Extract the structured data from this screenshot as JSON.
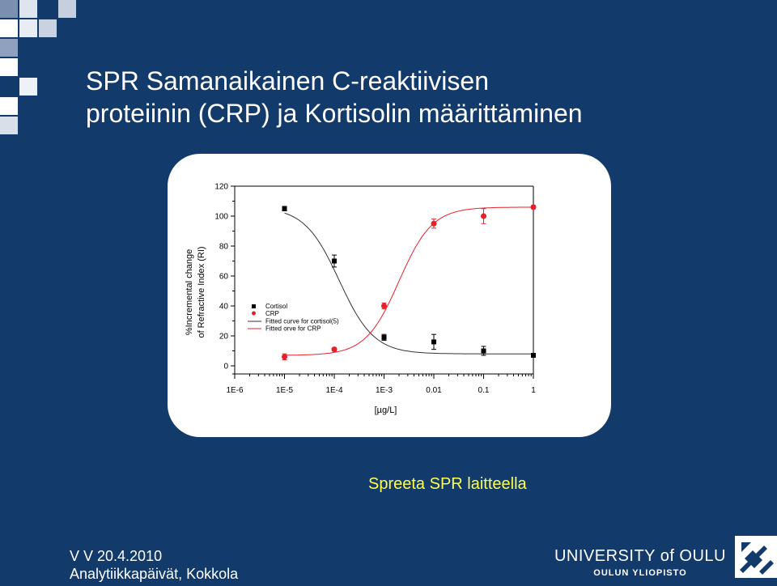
{
  "slide": {
    "title_line1": "SPR Samanaikainen C-reaktiivisen",
    "title_line2": "proteiinin (CRP) ja Kortisolin määrittäminen",
    "caption": "Spreeta SPR laitteella",
    "footer_line1": "V V 20.4.2010",
    "footer_line2": "Analytiikkapäivät, Kokkola",
    "university_name": "UNIVERSITY of OULU",
    "university_sub": "OULUN YLIOPISTO",
    "logo_icon": "university-logo-icon",
    "accent_color": "#ffff4d",
    "background_color": "#123a6b"
  },
  "chart_data": {
    "type": "scatter",
    "title": "",
    "xlabel": "[µg/L]",
    "ylabel_line1": "%Incremental change",
    "ylabel_line2": "of Refractive Index (RI)",
    "x_scale": "log",
    "xlim": [
      1e-06,
      1
    ],
    "ylim": [
      0,
      120
    ],
    "x_tick_labels": [
      "1E-6",
      "1E-5",
      "1E-4",
      "1E-3",
      "0.01",
      "0.1",
      "1"
    ],
    "x_tick_values": [
      1e-06,
      1e-05,
      0.0001,
      0.001,
      0.01,
      0.1,
      1
    ],
    "y_tick_labels": [
      "0",
      "20",
      "40",
      "60",
      "80",
      "100",
      "120"
    ],
    "y_tick_values": [
      0,
      20,
      40,
      60,
      80,
      100,
      120
    ],
    "legend_position": "bottom-left",
    "series": [
      {
        "name": "Cortisol",
        "marker": "square",
        "color": "#000000",
        "x": [
          1e-05,
          0.0001,
          0.001,
          0.01,
          0.1,
          1
        ],
        "y": [
          105,
          70,
          19,
          16,
          10,
          7
        ],
        "err": [
          1.5,
          4,
          2,
          5,
          3,
          1
        ]
      },
      {
        "name": "CRP",
        "marker": "circle",
        "color": "#e8202a",
        "x": [
          1e-05,
          0.0001,
          0.001,
          0.01,
          0.1,
          1
        ],
        "y": [
          6,
          11,
          40,
          95,
          100,
          106
        ],
        "err": [
          2,
          1,
          2,
          3,
          5,
          1
        ]
      }
    ],
    "fits": [
      {
        "name": "Fitted curve for cortisol(5)",
        "color": "#333333",
        "top": 106,
        "bottom": 8,
        "log_x0": -3.9,
        "hill": 1.25
      },
      {
        "name": "Fitted orve for CRP",
        "color": "#e8202a",
        "top": 106,
        "bottom": 7,
        "log_x0": -2.7,
        "hill": 1.3
      }
    ]
  }
}
